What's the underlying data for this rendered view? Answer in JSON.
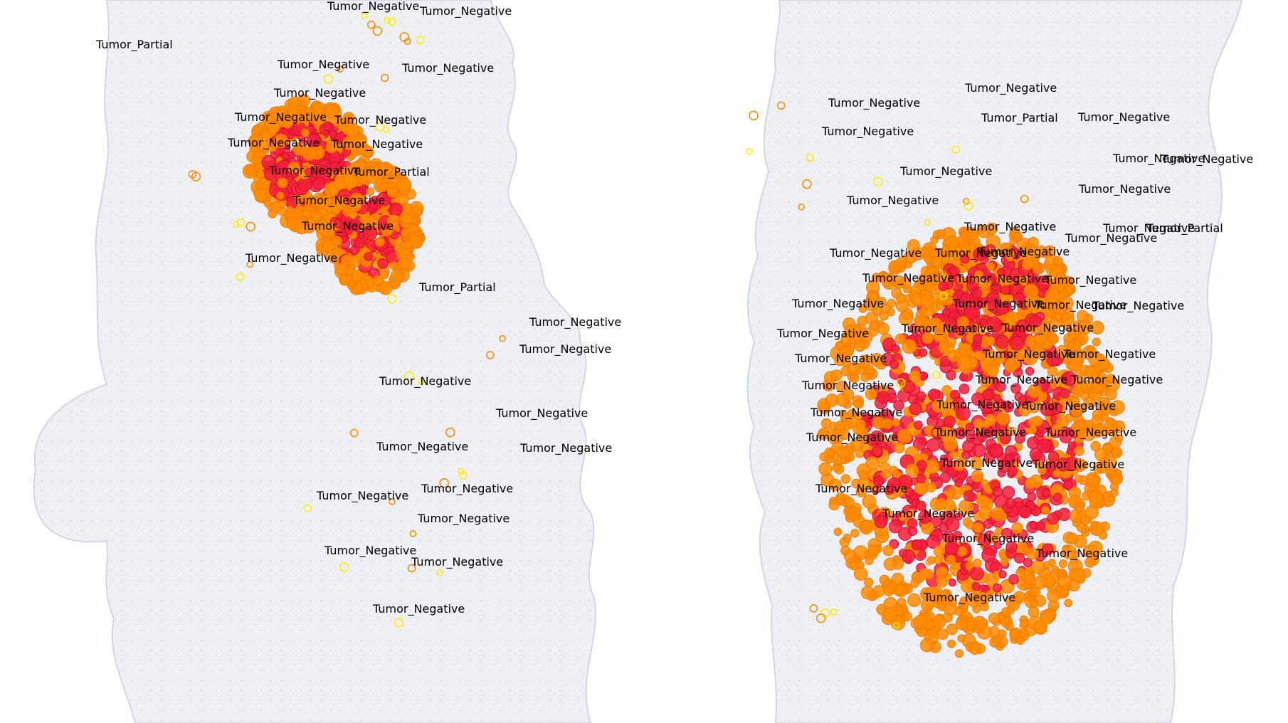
{
  "colors": {
    "background": "#ffffff",
    "tissue": "#eef0f6",
    "tissue_edge": "#d3d6e4",
    "positive_high": "#f51f3c",
    "positive_mid": "#ff8c00",
    "positive_low": "#ffee00",
    "label_text": "#000000"
  },
  "annotation_classes": [
    "Tumor_Negative",
    "Tumor_Partial"
  ],
  "left_section": {
    "labels": [
      "Tumor_Negative",
      "Tumor_Negative",
      "Tumor_Partial",
      "Tumor_Negative",
      "Tumor_Negative",
      "Tumor_Negative",
      "Tumor_Negative",
      "Tumor_Negative",
      "Tumor_Negative",
      "Tumor_Negative",
      "Tumor_Negative",
      "Tumor_Partial",
      "Tumor_Negative",
      "Tumor_Negative",
      "Tumor_Negative",
      "Tumor_Partial",
      "Tumor_Negative",
      "Tumor_Negative",
      "Tumor_Negative",
      "Tumor_Negative",
      "Tumor_Negative",
      "Tumor_Negative",
      "Tumor_Negative",
      "Tumor_Negative",
      "Tumor_Negative",
      "Tumor_Negative",
      "Tumor_Negative",
      "Tumor_Negative"
    ]
  },
  "right_section": {
    "labels": [
      "Tumor_Negative",
      "Tumor_Negative",
      "Tumor_Partial",
      "Tumor_Negative",
      "Tumor_Negative",
      "Tumor_Negative",
      "Tumor_Negative",
      "Tumor_Negative",
      "Tumor_Negative",
      "Tumor_Negative",
      "Tumor_Negative",
      "Tumor_Partial",
      "Tumor_Negative",
      "Tumor_Negative",
      "Tumor_Negative",
      "Tumor_Negative",
      "Tumor_Negative",
      "Tumor_Negative",
      "Tumor_Negative",
      "Tumor_Negative",
      "Tumor_Negative",
      "Tumor_Negative",
      "Tumor_Negative",
      "Tumor_Negative",
      "Tumor_Negative",
      "Tumor_Negative",
      "Tumor_Negative",
      "Tumor_Negative",
      "Tumor_Negative",
      "Tumor_Negative",
      "Tumor_Negative",
      "Tumor_Negative",
      "Tumor_Negative",
      "Tumor_Negative",
      "Tumor_Negative",
      "Tumor_Negative",
      "Tumor_Negative",
      "Tumor_Negative",
      "Tumor_Negative",
      "Tumor_Negative",
      "Tumor_Negative",
      "Tumor_Negative",
      "Tumor_Negative",
      "Tumor_Negative",
      "Tumor_Negative",
      "Tumor_Negative"
    ]
  }
}
